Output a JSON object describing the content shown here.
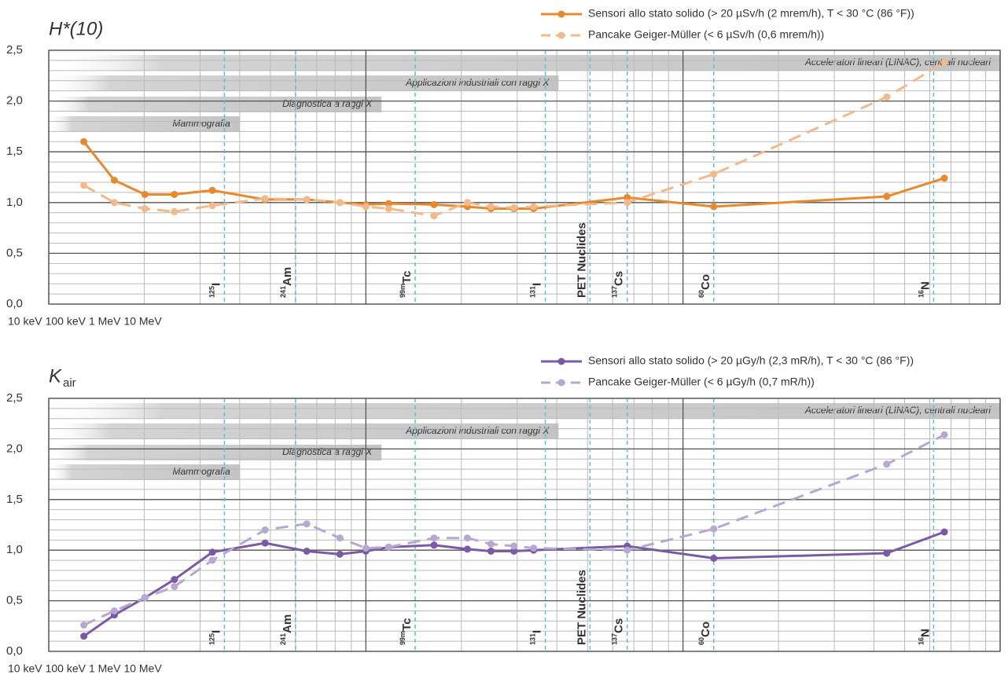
{
  "chart_data": [
    {
      "type": "line",
      "title": "H*(10)",
      "xscale": "log",
      "xlim": [
        10,
        10000
      ],
      "xticks": [
        {
          "value": 10,
          "label": "10 keV"
        },
        {
          "value": 100,
          "label": "100 keV"
        },
        {
          "value": 1000,
          "label": "1 MeV"
        },
        {
          "value": 10000,
          "label": "10 MeV"
        }
      ],
      "ylim": [
        0,
        2.5
      ],
      "yticks": [
        {
          "value": 0,
          "label": "0,0"
        },
        {
          "value": 0.5,
          "label": "0,5"
        },
        {
          "value": 1,
          "label": "1,0"
        },
        {
          "value": 1.5,
          "label": "1,5"
        },
        {
          "value": 2,
          "label": "2,0"
        },
        {
          "value": 2.5,
          "label": "2,5"
        }
      ],
      "grid": true,
      "legend": "top-right",
      "x": [
        12.9,
        16.1,
        20.1,
        24.9,
        32.8,
        48.1,
        65.1,
        82.8,
        100,
        118,
        164,
        209,
        248,
        293,
        338,
        667,
        1250,
        4390,
        6670
      ],
      "series": [
        {
          "name": "Sensori allo stato solido (> 20 µSv/h (2 mrem/h), T < 30 °C (86 °F))",
          "color": "#e8892e",
          "dash": false,
          "values": [
            1.6,
            1.22,
            1.08,
            1.08,
            1.12,
            1.03,
            1.03,
            1.0,
            0.98,
            0.99,
            0.98,
            0.96,
            0.94,
            0.94,
            0.94,
            1.05,
            0.96,
            1.06,
            1.24
          ]
        },
        {
          "name": "Pancake Geiger-Müller (< 6 µSv/h (0,6 mrem/h))",
          "color": "#f3b98a",
          "dash": true,
          "values": [
            1.17,
            1.0,
            0.94,
            0.91,
            0.97,
            1.04,
            1.03,
            1.0,
            0.96,
            0.94,
            0.87,
            1.0,
            0.96,
            0.95,
            0.96,
            1.0,
            1.28,
            2.04,
            2.38
          ]
        }
      ],
      "ranges": [
        {
          "label": "Acceleratori lineari (LINAC), centrali nucleari",
          "x_end": 10000
        },
        {
          "label": "Applicazioni industriali con raggi X",
          "x_end": 405
        },
        {
          "label": "Diagnostica a raggi X",
          "x_end": 112
        },
        {
          "label": "Mammografia",
          "x_end": 40
        }
      ],
      "nuclides": [
        {
          "mass": "125",
          "symbol": "I",
          "x": 35.8
        },
        {
          "mass": "241",
          "symbol": "Am",
          "x": 60
        },
        {
          "mass": "99m",
          "symbol": "Tc",
          "x": 143
        },
        {
          "mass": "131",
          "symbol": "I",
          "x": 368
        },
        {
          "symbol": "PET Nuclides",
          "x": 509
        },
        {
          "mass": "137",
          "symbol": "Cs",
          "x": 667
        },
        {
          "mass": "60",
          "symbol": "Co",
          "x": 1250
        },
        {
          "mass": "16",
          "symbol": "N",
          "x": 6170
        }
      ]
    },
    {
      "type": "line",
      "title": "K",
      "title_subscript": "air",
      "xscale": "log",
      "xlim": [
        10,
        10000
      ],
      "xticks": [
        {
          "value": 10,
          "label": "10 keV"
        },
        {
          "value": 100,
          "label": "100 keV"
        },
        {
          "value": 1000,
          "label": "1 MeV"
        },
        {
          "value": 10000,
          "label": "10 MeV"
        }
      ],
      "ylim": [
        0,
        2.5
      ],
      "yticks": [
        {
          "value": 0,
          "label": "0,0"
        },
        {
          "value": 0.5,
          "label": "0,5"
        },
        {
          "value": 1,
          "label": "1,0"
        },
        {
          "value": 1.5,
          "label": "1,5"
        },
        {
          "value": 2,
          "label": "2,0"
        },
        {
          "value": 2.5,
          "label": "2,5"
        }
      ],
      "grid": true,
      "legend": "top-right",
      "x": [
        12.9,
        16.1,
        20.1,
        24.9,
        32.8,
        48.1,
        65.1,
        82.8,
        100,
        118,
        164,
        209,
        248,
        293,
        338,
        667,
        1250,
        4390,
        6670
      ],
      "series": [
        {
          "name": "Sensori allo stato solido (> 20 µGy/h (2,3 mR/h), T < 30 °C (86 °F))",
          "color": "#7a5aa6",
          "dash": false,
          "values": [
            0.15,
            0.36,
            0.53,
            0.71,
            0.98,
            1.07,
            0.99,
            0.96,
            0.99,
            1.03,
            1.05,
            1.01,
            0.99,
            0.99,
            1.0,
            1.04,
            0.92,
            0.97,
            1.18
          ]
        },
        {
          "name": "Pancake Geiger-Müller (< 6 µGy/h (0,7 mR/h))",
          "color": "#b6a7d3",
          "dash": true,
          "values": [
            0.26,
            0.4,
            0.53,
            0.64,
            0.9,
            1.2,
            1.26,
            1.12,
            1.02,
            1.03,
            1.12,
            1.12,
            1.06,
            1.04,
            1.02,
            1.0,
            1.21,
            1.85,
            2.14
          ]
        }
      ],
      "ranges": [
        {
          "label": "Acceleratori lineari (LINAC), centrali nucleari",
          "x_end": 10000
        },
        {
          "label": "Applicazioni industriali con raggi X",
          "x_end": 405
        },
        {
          "label": "Diagnostica a raggi X",
          "x_end": 112
        },
        {
          "label": "Mammografia",
          "x_end": 40
        }
      ],
      "nuclides": [
        {
          "mass": "125",
          "symbol": "I",
          "x": 35.8
        },
        {
          "mass": "241",
          "symbol": "Am",
          "x": 60
        },
        {
          "mass": "99m",
          "symbol": "Tc",
          "x": 143
        },
        {
          "mass": "131",
          "symbol": "I",
          "x": 368
        },
        {
          "symbol": "PET Nuclides",
          "x": 509
        },
        {
          "mass": "137",
          "symbol": "Cs",
          "x": 667
        },
        {
          "mass": "60",
          "symbol": "Co",
          "x": 1250
        },
        {
          "mass": "16",
          "symbol": "N",
          "x": 6170
        }
      ]
    }
  ]
}
